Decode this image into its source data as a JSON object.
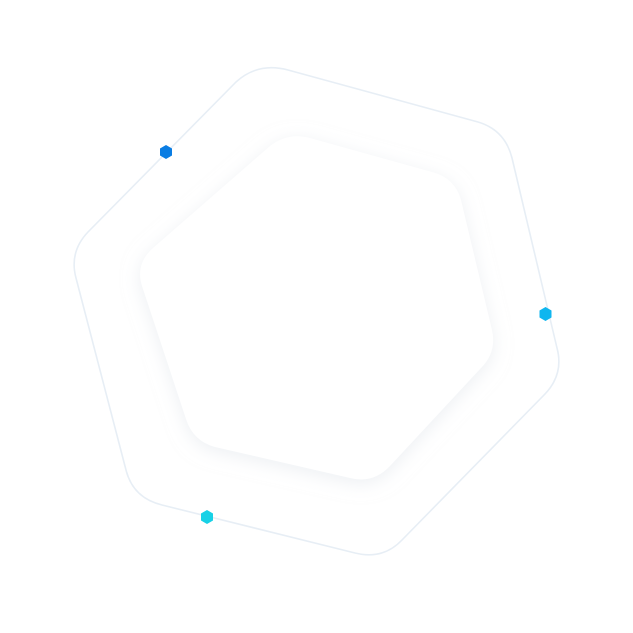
{
  "graphic": {
    "outer_frame": {
      "stroke_color": "#e7eef5"
    },
    "inner_tile": {
      "fill_color": "#ffffff",
      "shadow_color": "#dfe4ea"
    },
    "markers": [
      {
        "name": "marker-blue",
        "shape": "hexagon",
        "color": "#0a7de3"
      },
      {
        "name": "marker-sky",
        "shape": "hexagon",
        "color": "#0fb6ef"
      },
      {
        "name": "marker-cyan",
        "shape": "hexagon",
        "color": "#17d1e6"
      }
    ]
  }
}
